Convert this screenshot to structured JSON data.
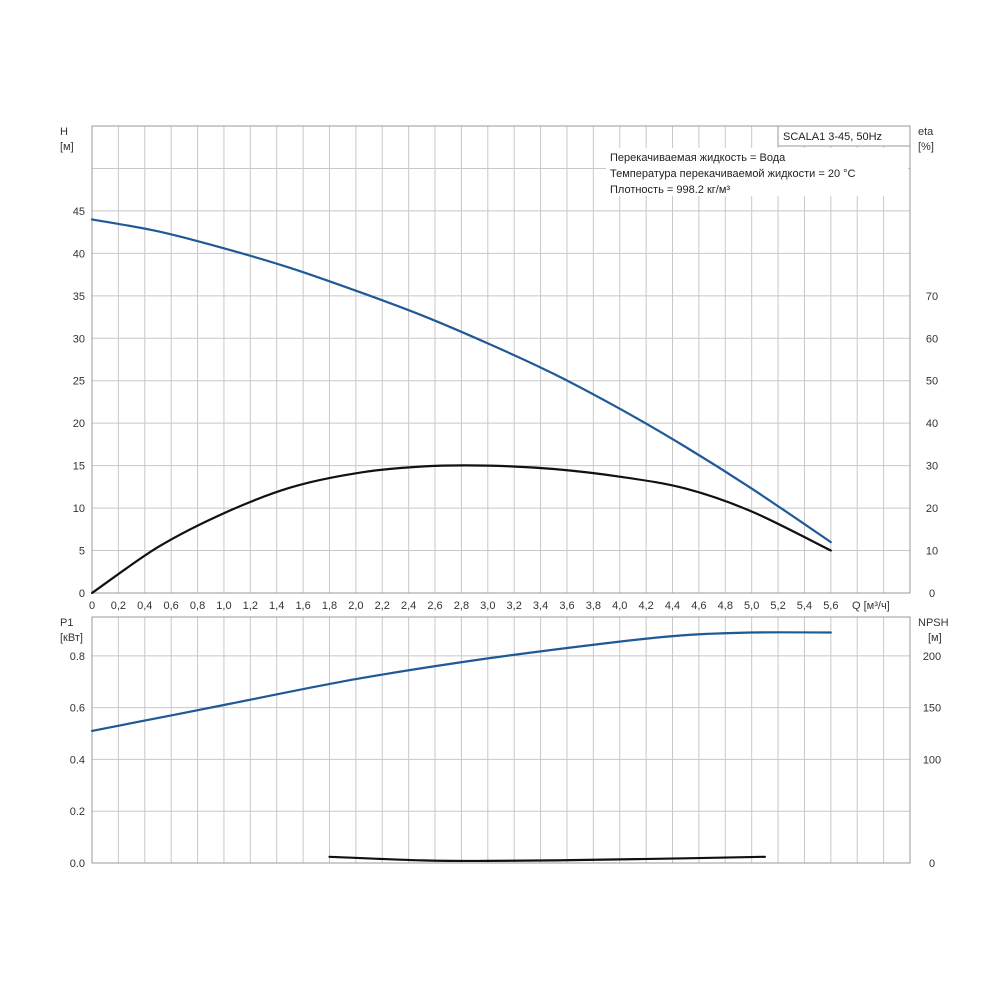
{
  "chart_data": [
    {
      "type": "line",
      "title": "SCALA1 3-45, 50Hz",
      "info_lines": [
        "Перекачиваемая жидкость = Вода",
        "Температура перекачиваемой жидкости = 20 °C",
        "Плотность = 998.2 кг/м³"
      ],
      "xlabel": "Q [м³/ч]",
      "xlim": [
        0,
        6.2
      ],
      "x_ticks": [
        "0",
        "0,2",
        "0,4",
        "0,6",
        "0,8",
        "1,0",
        "1,2",
        "1,4",
        "1,6",
        "1,8",
        "2,0",
        "2,2",
        "2,4",
        "2,6",
        "2,8",
        "3,0",
        "3,2",
        "3,4",
        "3,6",
        "3,8",
        "4,0",
        "4,2",
        "4,4",
        "4,6",
        "4,8",
        "5,0",
        "5,2",
        "5,4",
        "5,6"
      ],
      "ylabel_left": "H",
      "ylabel_left_unit": "[м]",
      "ylim_left": [
        0,
        55
      ],
      "y_ticks_left": [
        "0",
        "5",
        "10",
        "15",
        "20",
        "25",
        "30",
        "35",
        "40",
        "45"
      ],
      "ylabel_right": "eta",
      "ylabel_right_unit": "[%]",
      "ylim_right": [
        0,
        110
      ],
      "y_ticks_right": [
        "0",
        "10",
        "20",
        "30",
        "40",
        "50",
        "60",
        "70"
      ],
      "grid": true,
      "series": [
        {
          "axis": "left",
          "color": "#1f5a96",
          "x": [
            0,
            0.5,
            1.0,
            1.5,
            2.0,
            2.5,
            3.0,
            3.5,
            4.0,
            4.5,
            5.0,
            5.6
          ],
          "y": [
            44,
            42.6,
            40.6,
            38.3,
            35.6,
            32.7,
            29.4,
            25.8,
            21.7,
            17.2,
            12.3,
            6.0
          ]
        },
        {
          "axis": "right",
          "color": "#111111",
          "x": [
            0,
            0.5,
            1.0,
            1.5,
            2.0,
            2.5,
            3.0,
            3.5,
            4.0,
            4.5,
            5.0,
            5.6
          ],
          "y": [
            0,
            10.8,
            18.8,
            24.8,
            28.2,
            29.8,
            30.0,
            29.2,
            27.4,
            24.6,
            19.2,
            10.0
          ]
        }
      ]
    },
    {
      "type": "line",
      "xlim": [
        0,
        6.2
      ],
      "ylabel_left": "P1",
      "ylabel_left_unit": "[кВт]",
      "ylim_left": [
        0,
        0.95
      ],
      "y_ticks_left": [
        "0.0",
        "0.2",
        "0.4",
        "0.6",
        "0.8"
      ],
      "ylabel_right": "NPSH",
      "ylabel_right_unit": "[м]",
      "ylim_right": [
        0,
        237.5
      ],
      "y_ticks_right": [
        "0",
        "100",
        "150",
        "200"
      ],
      "grid": true,
      "series": [
        {
          "axis": "left",
          "color": "#1f5a96",
          "x": [
            0,
            1.0,
            2.0,
            3.0,
            4.0,
            4.5,
            5.0,
            5.6
          ],
          "y": [
            0.51,
            0.61,
            0.71,
            0.79,
            0.855,
            0.88,
            0.89,
            0.89
          ]
        },
        {
          "axis": "right",
          "color": "#111111",
          "x": [
            1.8,
            2.5,
            3.0,
            3.5,
            4.0,
            4.5,
            5.1
          ],
          "y": [
            6.0,
            2.5,
            2.0,
            2.5,
            3.5,
            4.5,
            6.0
          ]
        }
      ]
    }
  ]
}
